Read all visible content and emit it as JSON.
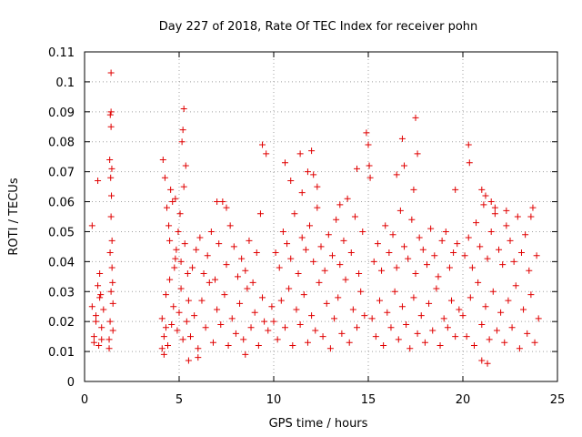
{
  "chart_data": {
    "type": "scatter",
    "title": "Day 227 of 2018, Rate Of TEC Index for receiver pohn",
    "xlabel": "GPS time / hours",
    "ylabel": "ROTI / TECUs",
    "xlim": [
      0,
      25
    ],
    "ylim": [
      0,
      0.11
    ],
    "xticks": [
      "0",
      "5",
      "10",
      "15",
      "20",
      "25"
    ],
    "yticks": [
      "0",
      "0.01",
      "0.02",
      "0.03",
      "0.04",
      "0.05",
      "0.06",
      "0.07",
      "0.08",
      "0.09",
      "0.1",
      "0.11"
    ],
    "grid": true,
    "marker": "+",
    "color": "#e00000",
    "series": [
      {
        "x": [
          0.4,
          0.5,
          0.6,
          0.7,
          0.8,
          0.9,
          1.0,
          1.3,
          1.35,
          1.4,
          1.45,
          1.5,
          1.35,
          1.4,
          1.42,
          1.38,
          1.44,
          1.4,
          1.36,
          0.7,
          0.8,
          0.4,
          0.5,
          0.9,
          1.3,
          1.5,
          1.4,
          0.6,
          0.75,
          0.85,
          1.45,
          1.33,
          1.48,
          1.4
        ],
        "y": [
          0.052,
          0.015,
          0.02,
          0.032,
          0.028,
          0.018,
          0.024,
          0.014,
          0.02,
          0.03,
          0.038,
          0.026,
          0.043,
          0.055,
          0.062,
          0.068,
          0.071,
          0.085,
          0.089,
          0.067,
          0.036,
          0.025,
          0.013,
          0.014,
          0.011,
          0.017,
          0.103,
          0.022,
          0.012,
          0.029,
          0.047,
          0.074,
          0.033,
          0.09
        ]
      },
      {
        "x": [
          4.1,
          4.2,
          4.3,
          4.4,
          4.5,
          4.6,
          4.7,
          4.8,
          4.9,
          5.0,
          5.1,
          5.2,
          5.3,
          5.4,
          5.5,
          4.15,
          4.25,
          4.35,
          4.45,
          4.55,
          4.65,
          4.75,
          4.85,
          4.95,
          5.05,
          5.15,
          5.25,
          5.35,
          5.45,
          4.1,
          4.2,
          4.3,
          5.2,
          5.25,
          5.1,
          4.8,
          4.5
        ],
        "y": [
          0.021,
          0.015,
          0.029,
          0.012,
          0.034,
          0.019,
          0.025,
          0.041,
          0.017,
          0.023,
          0.031,
          0.014,
          0.046,
          0.02,
          0.027,
          0.074,
          0.068,
          0.058,
          0.052,
          0.064,
          0.06,
          0.038,
          0.044,
          0.05,
          0.056,
          0.08,
          0.091,
          0.072,
          0.036,
          0.011,
          0.009,
          0.018,
          0.084,
          0.065,
          0.04,
          0.061,
          0.047
        ]
      },
      {
        "x": [
          5.6,
          5.8,
          6.0,
          6.2,
          6.4,
          6.6,
          6.8,
          7.0,
          7.2,
          7.4,
          7.6,
          7.8,
          8.0,
          8.2,
          8.4,
          8.6,
          8.8,
          9.0,
          9.2,
          9.4,
          9.5,
          9.7,
          9.9,
          5.7,
          5.9,
          6.1,
          6.3,
          6.5,
          6.7,
          6.9,
          7.1,
          7.3,
          7.5,
          7.7,
          7.9,
          8.1,
          8.3,
          8.5,
          8.7,
          8.9,
          9.1,
          9.3,
          7.0,
          7.5,
          9.4,
          9.6,
          5.5,
          6.0,
          8.5
        ],
        "y": [
          0.015,
          0.022,
          0.011,
          0.027,
          0.018,
          0.033,
          0.013,
          0.024,
          0.019,
          0.029,
          0.012,
          0.021,
          0.016,
          0.026,
          0.014,
          0.031,
          0.018,
          0.023,
          0.012,
          0.028,
          0.02,
          0.017,
          0.025,
          0.038,
          0.044,
          0.048,
          0.036,
          0.042,
          0.05,
          0.034,
          0.046,
          0.06,
          0.039,
          0.052,
          0.045,
          0.035,
          0.041,
          0.037,
          0.047,
          0.033,
          0.043,
          0.056,
          0.06,
          0.058,
          0.079,
          0.076,
          0.007,
          0.008,
          0.009
        ]
      },
      {
        "x": [
          10.0,
          10.2,
          10.4,
          10.6,
          10.8,
          11.0,
          11.2,
          11.4,
          11.6,
          11.8,
          12.0,
          12.2,
          12.4,
          12.6,
          12.8,
          13.0,
          13.2,
          13.4,
          13.6,
          13.8,
          14.0,
          14.2,
          14.4,
          14.6,
          14.8,
          10.1,
          10.3,
          10.5,
          10.7,
          10.9,
          11.1,
          11.3,
          11.5,
          11.7,
          11.9,
          12.1,
          12.3,
          12.5,
          12.7,
          12.9,
          13.1,
          13.3,
          13.5,
          13.7,
          13.9,
          14.1,
          14.3,
          14.5,
          14.7,
          10.6,
          10.9,
          11.4,
          11.5,
          11.8,
          12.0,
          12.1,
          12.3,
          13.5,
          14.4
        ],
        "y": [
          0.02,
          0.014,
          0.027,
          0.018,
          0.031,
          0.012,
          0.024,
          0.019,
          0.029,
          0.013,
          0.022,
          0.017,
          0.033,
          0.015,
          0.026,
          0.011,
          0.021,
          0.028,
          0.016,
          0.034,
          0.013,
          0.024,
          0.018,
          0.03,
          0.022,
          0.043,
          0.038,
          0.05,
          0.046,
          0.041,
          0.056,
          0.036,
          0.048,
          0.044,
          0.052,
          0.04,
          0.058,
          0.045,
          0.037,
          0.049,
          0.042,
          0.054,
          0.039,
          0.047,
          0.061,
          0.043,
          0.055,
          0.036,
          0.05,
          0.073,
          0.067,
          0.076,
          0.063,
          0.07,
          0.077,
          0.069,
          0.065,
          0.059,
          0.071
        ]
      },
      {
        "x": [
          14.9,
          15.0,
          15.05,
          15.1,
          15.2,
          15.4,
          15.6,
          15.8,
          16.0,
          16.2,
          16.4,
          16.6,
          16.8,
          17.0,
          17.2,
          17.4,
          17.6,
          17.8,
          18.0,
          18.2,
          18.4,
          18.6,
          18.8,
          19.0,
          19.2,
          19.4,
          19.6,
          19.8,
          15.3,
          15.5,
          15.7,
          15.9,
          16.1,
          16.3,
          16.5,
          16.7,
          16.9,
          17.1,
          17.3,
          17.5,
          17.7,
          17.9,
          18.1,
          18.3,
          18.5,
          18.7,
          18.9,
          19.1,
          19.3,
          19.5,
          19.7,
          16.8,
          16.9,
          17.5,
          17.6,
          17.4,
          16.5,
          19.6
        ],
        "y": [
          0.083,
          0.079,
          0.072,
          0.068,
          0.021,
          0.015,
          0.027,
          0.012,
          0.023,
          0.018,
          0.03,
          0.014,
          0.025,
          0.019,
          0.011,
          0.028,
          0.016,
          0.022,
          0.013,
          0.026,
          0.017,
          0.031,
          0.012,
          0.021,
          0.018,
          0.027,
          0.015,
          0.024,
          0.04,
          0.046,
          0.037,
          0.052,
          0.043,
          0.049,
          0.038,
          0.057,
          0.045,
          0.041,
          0.054,
          0.036,
          0.048,
          0.044,
          0.039,
          0.051,
          0.042,
          0.035,
          0.047,
          0.05,
          0.038,
          0.043,
          0.046,
          0.081,
          0.072,
          0.088,
          0.076,
          0.064,
          0.069,
          0.064
        ]
      },
      {
        "x": [
          20.0,
          20.2,
          20.4,
          20.6,
          20.8,
          21.0,
          21.2,
          21.4,
          21.6,
          21.8,
          22.0,
          22.2,
          22.4,
          22.6,
          22.8,
          23.0,
          23.2,
          23.4,
          23.6,
          23.8,
          24.0,
          20.1,
          20.3,
          20.5,
          20.7,
          20.9,
          21.1,
          21.3,
          21.5,
          21.7,
          21.9,
          22.1,
          22.3,
          22.5,
          22.7,
          22.9,
          23.1,
          23.3,
          23.5,
          23.7,
          23.9,
          20.3,
          20.35,
          21.0,
          21.2,
          21.5,
          21.7,
          22.3,
          23.6,
          21.3,
          21.0
        ],
        "y": [
          0.022,
          0.015,
          0.028,
          0.012,
          0.033,
          0.019,
          0.025,
          0.014,
          0.03,
          0.017,
          0.023,
          0.013,
          0.027,
          0.018,
          0.032,
          0.011,
          0.024,
          0.016,
          0.029,
          0.013,
          0.021,
          0.042,
          0.048,
          0.038,
          0.053,
          0.045,
          0.059,
          0.041,
          0.05,
          0.056,
          0.044,
          0.039,
          0.052,
          0.047,
          0.04,
          0.055,
          0.043,
          0.049,
          0.037,
          0.058,
          0.042,
          0.079,
          0.073,
          0.064,
          0.062,
          0.06,
          0.058,
          0.057,
          0.055,
          0.006,
          0.007
        ]
      }
    ]
  }
}
